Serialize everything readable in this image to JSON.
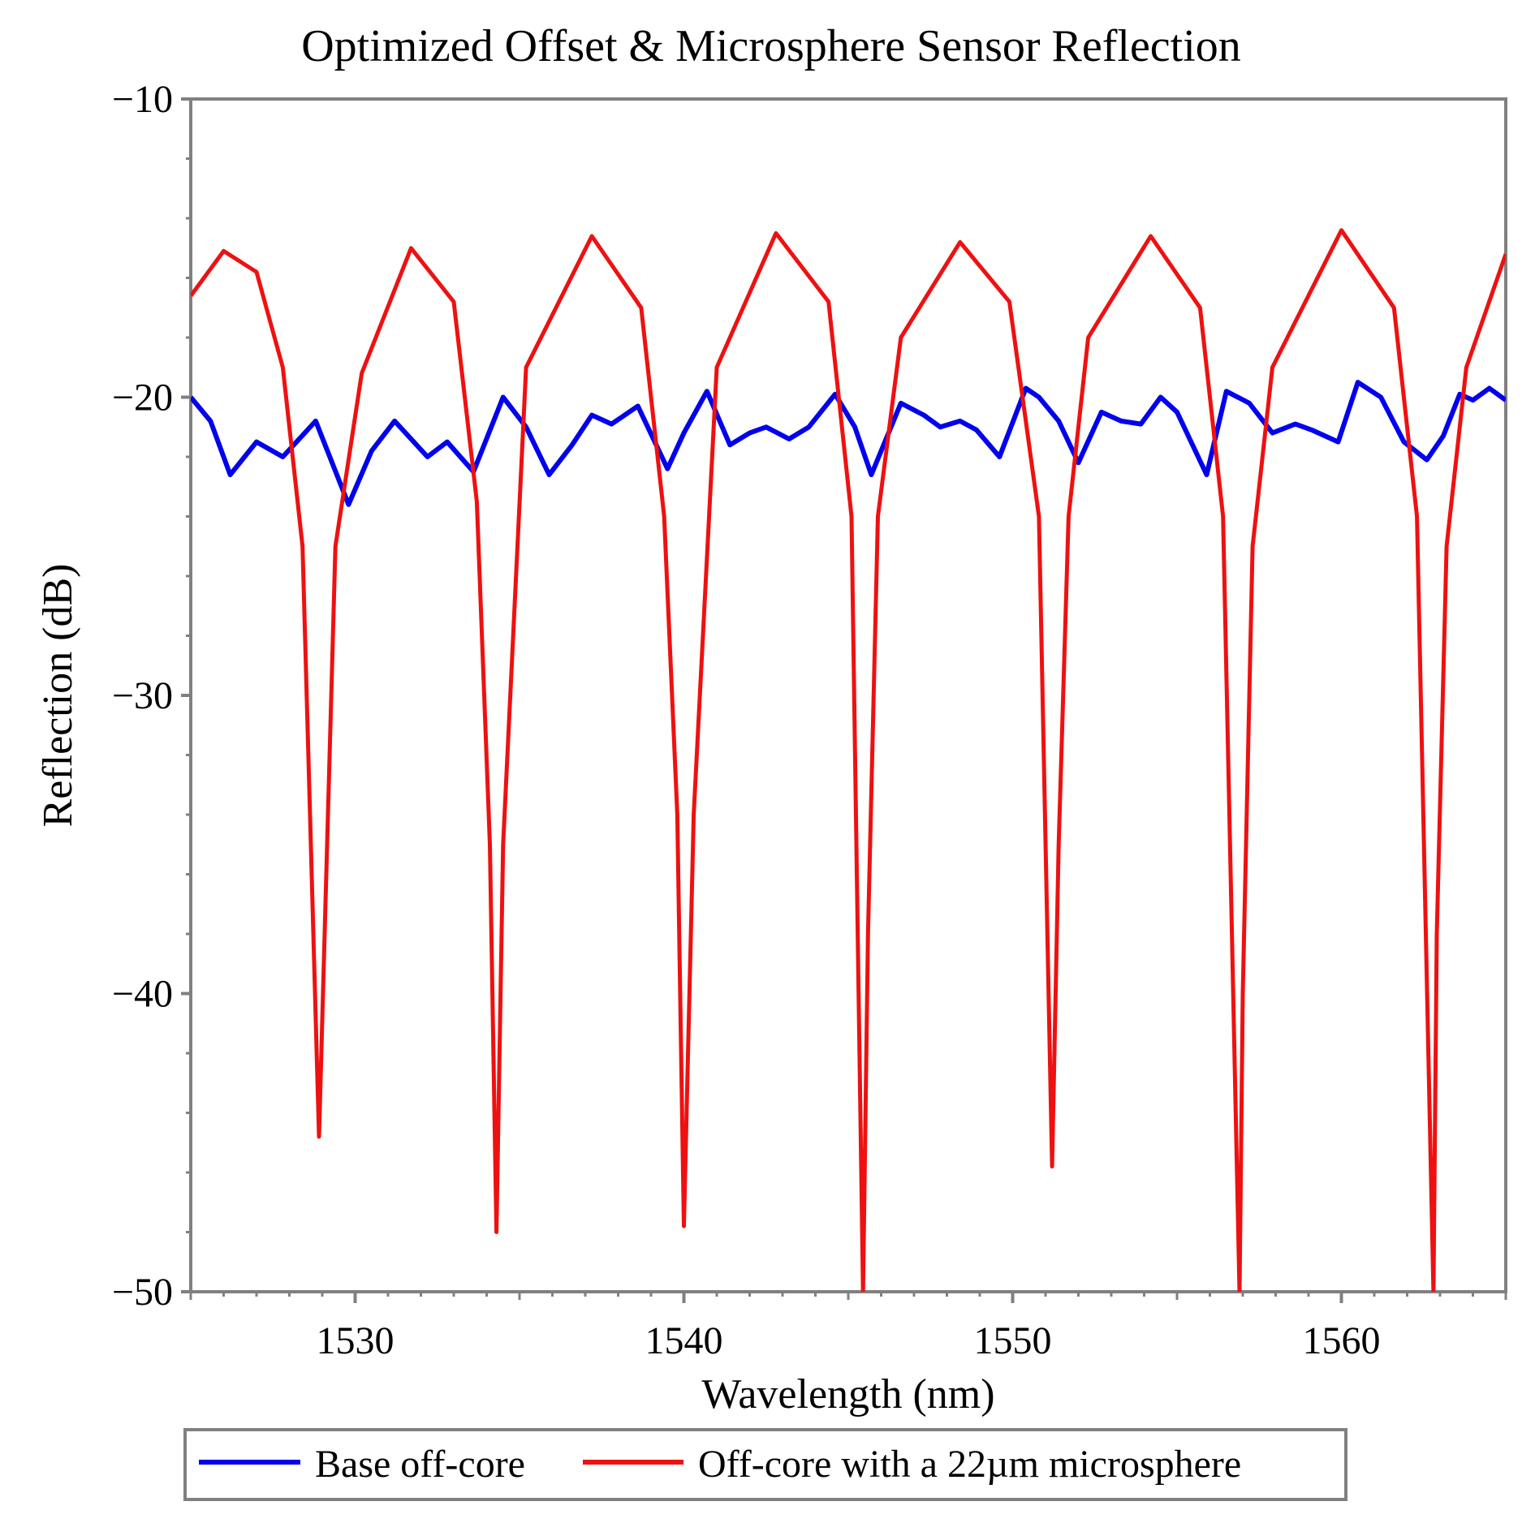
{
  "chart_data": {
    "type": "line",
    "title": "Optimized Offset & Microsphere Sensor Reflection",
    "xlabel": "Wavelength (nm)",
    "ylabel": "Reflection (dB)",
    "xlim": [
      1525,
      1565
    ],
    "ylim": [
      -50,
      -10
    ],
    "xticks": [
      1530,
      1540,
      1550,
      1560
    ],
    "xtick_labels": [
      "1530",
      "1540",
      "1550",
      "1560"
    ],
    "yticks": [
      -10,
      -20,
      -30,
      -40,
      -50
    ],
    "ytick_labels": [
      "−10",
      "−20",
      "−30",
      "−40",
      "−50"
    ],
    "grid": false,
    "legend_position": "bottom",
    "series": [
      {
        "name": "Base off-core",
        "color": "#0000ee",
        "x": [
          1525.0,
          1525.6,
          1526.2,
          1527.0,
          1527.8,
          1528.8,
          1529.8,
          1530.5,
          1531.2,
          1532.2,
          1532.8,
          1533.6,
          1534.5,
          1535.2,
          1535.9,
          1536.6,
          1537.2,
          1537.8,
          1538.6,
          1539.5,
          1540.0,
          1540.7,
          1541.4,
          1542.0,
          1542.5,
          1543.2,
          1543.8,
          1544.6,
          1545.2,
          1545.7,
          1546.6,
          1547.3,
          1547.8,
          1548.4,
          1548.9,
          1549.6,
          1550.4,
          1550.8,
          1551.4,
          1552.0,
          1552.7,
          1553.3,
          1553.9,
          1554.5,
          1555.0,
          1555.9,
          1556.5,
          1557.2,
          1557.9,
          1558.6,
          1559.1,
          1559.9,
          1560.5,
          1561.2,
          1561.9,
          1562.6,
          1563.1,
          1563.6,
          1564.0,
          1564.5,
          1565.0
        ],
        "values": [
          -20.0,
          -20.8,
          -22.6,
          -21.5,
          -22.0,
          -20.8,
          -23.6,
          -21.8,
          -20.8,
          -22.0,
          -21.5,
          -22.5,
          -20.0,
          -21.0,
          -22.6,
          -21.6,
          -20.6,
          -20.9,
          -20.3,
          -22.4,
          -21.2,
          -19.8,
          -21.6,
          -21.2,
          -21.0,
          -21.4,
          -21.0,
          -19.9,
          -21.0,
          -22.6,
          -20.2,
          -20.6,
          -21.0,
          -20.8,
          -21.1,
          -22.0,
          -19.7,
          -20.0,
          -20.8,
          -22.2,
          -20.5,
          -20.8,
          -20.9,
          -20.0,
          -20.5,
          -22.6,
          -19.8,
          -20.2,
          -21.2,
          -20.9,
          -21.1,
          -21.5,
          -19.5,
          -20.0,
          -21.5,
          -22.1,
          -21.3,
          -19.9,
          -20.1,
          -19.7,
          -20.1
        ]
      },
      {
        "name": "Off-core with a 22µm microsphere",
        "color": "#ee1111",
        "x": [
          1525.0,
          1526.0,
          1527.0,
          1527.8,
          1528.4,
          1528.9,
          1529.4,
          1530.2,
          1531.7,
          1533.0,
          1533.7,
          1534.1,
          1534.3,
          1534.5,
          1535.2,
          1537.2,
          1538.7,
          1539.4,
          1539.8,
          1540.0,
          1540.3,
          1541.0,
          1542.8,
          1544.4,
          1545.1,
          1545.45,
          1545.6,
          1545.9,
          1546.6,
          1548.4,
          1549.9,
          1550.8,
          1551.2,
          1551.4,
          1551.7,
          1552.3,
          1554.2,
          1555.7,
          1556.4,
          1556.9,
          1557.0,
          1557.3,
          1557.9,
          1560.0,
          1561.6,
          1562.3,
          1562.8,
          1562.9,
          1563.2,
          1563.8,
          1565.0
        ],
        "values": [
          -16.6,
          -15.1,
          -15.8,
          -19.0,
          -25.0,
          -44.8,
          -25.0,
          -19.2,
          -15.0,
          -16.8,
          -23.5,
          -35.0,
          -48.0,
          -35.0,
          -19.0,
          -14.6,
          -17.0,
          -24.0,
          -34.0,
          -47.8,
          -34.0,
          -19.0,
          -14.5,
          -16.8,
          -24.0,
          -50.0,
          -38.0,
          -24.0,
          -18.0,
          -14.8,
          -16.8,
          -24.0,
          -45.8,
          -35.0,
          -24.0,
          -18.0,
          -14.6,
          -17.0,
          -24.0,
          -50.0,
          -40.0,
          -25.0,
          -19.0,
          -14.4,
          -17.0,
          -24.0,
          -50.0,
          -38.0,
          -25.0,
          -19.0,
          -15.2
        ]
      }
    ]
  }
}
